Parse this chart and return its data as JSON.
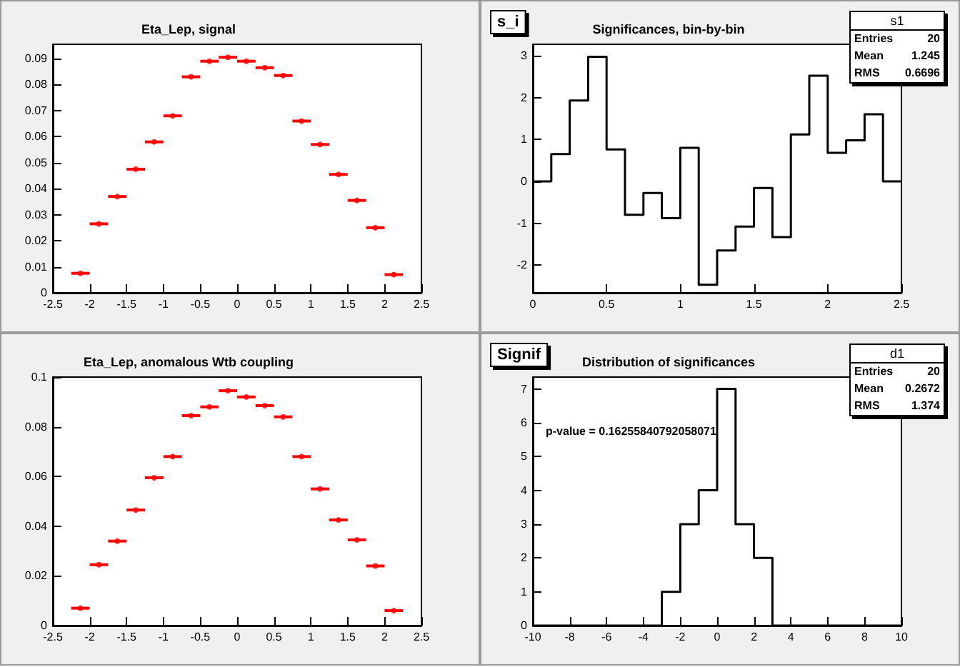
{
  "chart_data": [
    {
      "type": "scatter",
      "title": "Eta_Lep, signal",
      "x": [
        -2.125,
        -1.875,
        -1.625,
        -1.375,
        -1.125,
        -0.875,
        -0.625,
        -0.375,
        -0.125,
        0.125,
        0.375,
        0.625,
        0.875,
        1.125,
        1.375,
        1.625,
        1.875,
        2.125
      ],
      "values": [
        0.0075,
        0.0265,
        0.037,
        0.0475,
        0.058,
        0.068,
        0.083,
        0.089,
        0.0905,
        0.089,
        0.0865,
        0.0835,
        0.066,
        0.057,
        0.0455,
        0.0355,
        0.025,
        0.007
      ],
      "xerrors": [
        0.125,
        0.125,
        0.125,
        0.125,
        0.125,
        0.125,
        0.125,
        0.125,
        0.125,
        0.125,
        0.125,
        0.125,
        0.125,
        0.125,
        0.125,
        0.125,
        0.125,
        0.125
      ],
      "color": "#ff0000",
      "marker": "circle",
      "xlim": [
        -2.5,
        2.5
      ],
      "xticks": [
        -2.5,
        -2,
        -1.5,
        -1,
        -0.5,
        0,
        0.5,
        1,
        1.5,
        2,
        2.5
      ],
      "ylim": [
        0,
        0.0955
      ],
      "yticks": [
        0,
        0.01,
        0.02,
        0.03,
        0.04,
        0.05,
        0.06,
        0.07,
        0.08,
        0.09
      ]
    },
    {
      "type": "histogram",
      "title": "Significances, bin-by-bin",
      "bins": [
        0,
        0.125,
        0.25,
        0.375,
        0.5,
        0.625,
        0.75,
        0.875,
        1,
        1.125,
        1.25,
        1.375,
        1.5,
        1.625,
        1.75,
        1.875,
        2,
        2.125,
        2.25,
        2.375,
        2.5
      ],
      "values": [
        0,
        0.65,
        1.93,
        2.97,
        0.76,
        -0.8,
        -0.28,
        -0.88,
        0.8,
        -2.47,
        -1.65,
        -1.08,
        -0.16,
        -1.33,
        1.12,
        2.52,
        0.68,
        0.98,
        1.6,
        0
      ],
      "color": "#000000",
      "xlim": [
        0,
        2.5
      ],
      "xticks": [
        0,
        0.5,
        1,
        1.5,
        2,
        2.5
      ],
      "ylim": [
        -2.66,
        3.27
      ],
      "yticks": [
        -2,
        -1,
        0,
        1,
        2,
        3
      ],
      "annotations": [
        "s_i",
        "s1",
        "Entries 20",
        "Mean 1.245",
        "RMS 0.6696"
      ]
    },
    {
      "type": "scatter",
      "title": "Eta_Lep, anomalous Wtb coupling",
      "x": [
        -2.125,
        -1.875,
        -1.625,
        -1.375,
        -1.125,
        -0.875,
        -0.625,
        -0.375,
        -0.125,
        0.125,
        0.375,
        0.625,
        0.875,
        1.125,
        1.375,
        1.625,
        1.875,
        2.125
      ],
      "values": [
        0.007,
        0.0245,
        0.034,
        0.0465,
        0.0595,
        0.068,
        0.0845,
        0.088,
        0.0945,
        0.092,
        0.0885,
        0.084,
        0.068,
        0.055,
        0.0425,
        0.0345,
        0.024,
        0.006
      ],
      "xerrors": [
        0.125,
        0.125,
        0.125,
        0.125,
        0.125,
        0.125,
        0.125,
        0.125,
        0.125,
        0.125,
        0.125,
        0.125,
        0.125,
        0.125,
        0.125,
        0.125,
        0.125,
        0.125
      ],
      "color": "#ff0000",
      "marker": "circle",
      "xlim": [
        -2.5,
        2.5
      ],
      "xticks": [
        -2.5,
        -2,
        -1.5,
        -1,
        -0.5,
        0,
        0.5,
        1,
        1.5,
        2,
        2.5
      ],
      "ylim": [
        0,
        0.1
      ],
      "yticks": [
        0,
        0.02,
        0.04,
        0.06,
        0.08,
        0.1
      ]
    },
    {
      "type": "histogram",
      "title": "Distribution of significances",
      "bins": [
        -10,
        -9,
        -8,
        -7,
        -6,
        -5,
        -4,
        -3,
        -2,
        -1,
        0,
        1,
        2,
        3,
        4,
        5,
        6,
        7,
        8,
        9,
        10
      ],
      "values": [
        0,
        0,
        0,
        0,
        0,
        0,
        0,
        1,
        3,
        4,
        7,
        3,
        2,
        0,
        0,
        0,
        0,
        0,
        0,
        0
      ],
      "color": "#000000",
      "xlim": [
        -10,
        10
      ],
      "xticks": [
        -10,
        -8,
        -6,
        -4,
        -2,
        0,
        2,
        4,
        6,
        8,
        10
      ],
      "ylim": [
        0,
        7.35
      ],
      "yticks": [
        0,
        1,
        2,
        3,
        4,
        5,
        6,
        7
      ],
      "annotations": [
        "Signif",
        "d1",
        "Entries 20",
        "Mean 0.2672",
        "RMS 1.374",
        "p-value = 0.16255840792058071"
      ]
    }
  ]
}
